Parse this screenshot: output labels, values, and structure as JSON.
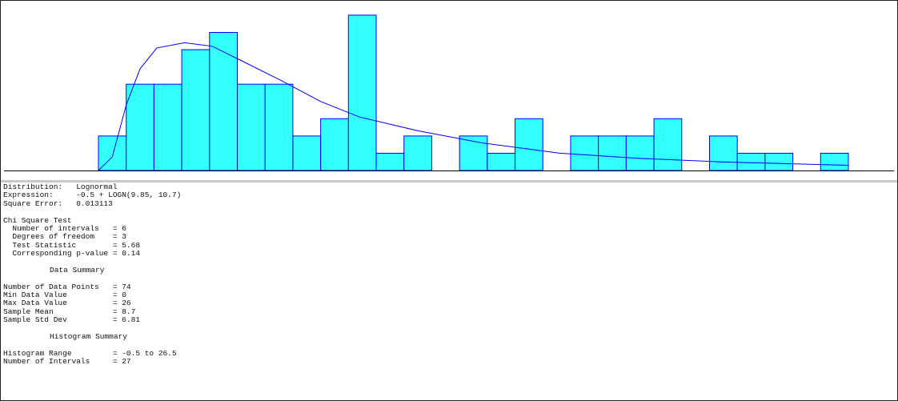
{
  "chart_data": {
    "type": "histogram",
    "bins": [
      -0.5,
      0.5,
      1.5,
      2.5,
      3.5,
      4.5,
      5.5,
      6.5,
      7.5,
      8.5,
      9.5,
      10.5,
      11.5,
      12.5,
      13.5,
      14.5,
      15.5,
      16.5,
      17.5,
      18.5,
      19.5,
      20.5,
      21.5,
      22.5,
      23.5,
      24.5,
      25.5,
      26.5
    ],
    "values": [
      2,
      5,
      5,
      7,
      8,
      5,
      5,
      2,
      3,
      9,
      1,
      2,
      0,
      2,
      1,
      3,
      0,
      2,
      2,
      2,
      3,
      0,
      2,
      1,
      1,
      0,
      1
    ],
    "color": "#33ffff",
    "edge_color": "#0000ff",
    "curve": {
      "color": "#0000ff",
      "x": [
        -0.5,
        0.0,
        0.5,
        1.0,
        1.6,
        2.6,
        3.6,
        4.6,
        6.1,
        7.5,
        8.9,
        11.0,
        13.3,
        16.1,
        19.0,
        21.9,
        26.5
      ],
      "values": [
        0,
        0.8,
        3.8,
        5.9,
        7.1,
        7.4,
        7.2,
        6.4,
        5.2,
        4.0,
        3.1,
        2.3,
        1.6,
        1.0,
        0.7,
        0.5,
        0.3
      ]
    },
    "xlim": [
      -0.5,
      26.5
    ],
    "ylim": [
      0,
      9.6
    ]
  },
  "report": {
    "blocks": [
      {
        "lines": [
          "Distribution:   Lognormal",
          "Expression:     -0.5 + LOGN(9.85, 10.7)",
          "Square Error:   0.013113"
        ]
      },
      {
        "lines": [
          "Chi Square Test",
          "  Number of intervals   = 6",
          "  Degrees of freedom    = 3",
          "  Test Statistic        = 5.68",
          "  Corresponding p-value = 0.14"
        ]
      },
      {
        "heading": "Data Summary"
      },
      {
        "lines": [
          "Number of Data Points   = 74",
          "Min Data Value          = 0",
          "Max Data Value          = 26",
          "Sample Mean             = 8.7",
          "Sample Std Dev          = 6.81"
        ]
      },
      {
        "heading": "Histogram Summary"
      },
      {
        "lines": [
          "Histogram Range         = -0.5 to 26.5",
          "Number of Intervals     = 27"
        ]
      }
    ]
  }
}
